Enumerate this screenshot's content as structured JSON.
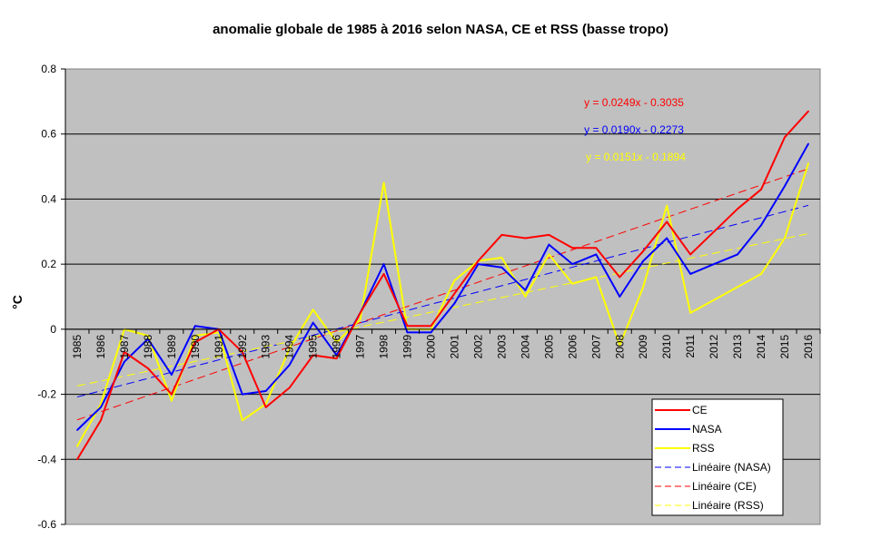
{
  "chart_data": {
    "type": "line",
    "title": "anomalie globale de 1985 à 2016 selon NASA, CE et RSS (basse tropo)",
    "xlabel": "",
    "ylabel": "°C",
    "ylim": [
      -0.6,
      0.8
    ],
    "yticks": [
      -0.6,
      -0.4,
      -0.2,
      0,
      0.2,
      0.4,
      0.6,
      0.8
    ],
    "ytick_labels": [
      "-0.6",
      "-0.4",
      "-0.2",
      "0",
      "0.2",
      "0.4",
      "0.6",
      "0.8"
    ],
    "categories": [
      "1985",
      "1986",
      "1987",
      "1988",
      "1989",
      "1990",
      "1991",
      "1992",
      "1993",
      "1994",
      "1995",
      "1996",
      "1997",
      "1998",
      "1999",
      "2000",
      "2001",
      "2002",
      "2003",
      "2004",
      "2005",
      "2006",
      "2007",
      "2008",
      "2009",
      "2010",
      "2011",
      "2012",
      "2013",
      "2014",
      "2015",
      "2016"
    ],
    "grid": "horizontal",
    "background": "#c0c0c0",
    "series": [
      {
        "name": "CE",
        "color": "#ff0000",
        "values": [
          -0.4,
          -0.28,
          -0.07,
          -0.12,
          -0.2,
          -0.04,
          0.0,
          -0.07,
          -0.24,
          -0.18,
          -0.08,
          -0.09,
          0.05,
          0.17,
          0.01,
          0.01,
          0.11,
          0.21,
          0.29,
          0.28,
          0.29,
          0.25,
          0.25,
          0.16,
          0.24,
          0.33,
          0.23,
          0.3,
          0.37,
          0.43,
          0.59,
          0.67
        ]
      },
      {
        "name": "NASA",
        "color": "#0000ff",
        "values": [
          -0.31,
          -0.24,
          -0.1,
          -0.03,
          -0.14,
          0.01,
          0.0,
          -0.2,
          -0.19,
          -0.11,
          0.02,
          -0.08,
          0.05,
          0.2,
          -0.01,
          -0.01,
          0.08,
          0.2,
          0.19,
          0.12,
          0.26,
          0.2,
          0.23,
          0.1,
          0.21,
          0.28,
          0.17,
          0.2,
          0.23,
          0.32,
          0.44,
          0.57
        ]
      },
      {
        "name": "RSS",
        "color": "#ffff00",
        "values": [
          -0.36,
          -0.23,
          0.0,
          -0.02,
          -0.22,
          -0.02,
          -0.01,
          -0.28,
          -0.23,
          -0.06,
          0.06,
          -0.04,
          0.03,
          0.45,
          0.0,
          0.0,
          0.15,
          0.21,
          0.22,
          0.1,
          0.23,
          0.14,
          0.16,
          -0.05,
          0.13,
          0.38,
          0.05,
          0.09,
          0.13,
          0.17,
          0.28,
          0.51
        ]
      }
    ],
    "trendlines": [
      {
        "name": "Linéaire (NASA)",
        "color": "#0000ff",
        "slope": 0.019,
        "intercept": -0.2273,
        "equation": "y = 0.0190x - 0.2273"
      },
      {
        "name": "Linéaire (CE)",
        "color": "#ff0000",
        "slope": 0.0249,
        "intercept": -0.3035,
        "equation": "y = 0.0249x - 0.3035"
      },
      {
        "name": "Linéaire (RSS)",
        "color": "#ffff00",
        "slope": 0.0151,
        "intercept": -0.1894,
        "equation": "y = 0.0151x - 0.1894"
      }
    ],
    "equations_order": [
      "Linéaire (CE)",
      "Linéaire (NASA)",
      "Linéaire (RSS)"
    ],
    "legend": {
      "position": "bottom-right",
      "entries": [
        {
          "label": "CE",
          "color": "#ff0000",
          "style": "solid"
        },
        {
          "label": "NASA",
          "color": "#0000ff",
          "style": "solid"
        },
        {
          "label": "RSS",
          "color": "#ffff00",
          "style": "solid"
        },
        {
          "label": "Linéaire (NASA)",
          "color": "#0000ff",
          "style": "dashed"
        },
        {
          "label": "Linéaire (CE)",
          "color": "#ff0000",
          "style": "dashed"
        },
        {
          "label": "Linéaire (RSS)",
          "color": "#ffff00",
          "style": "dashed"
        }
      ]
    }
  }
}
